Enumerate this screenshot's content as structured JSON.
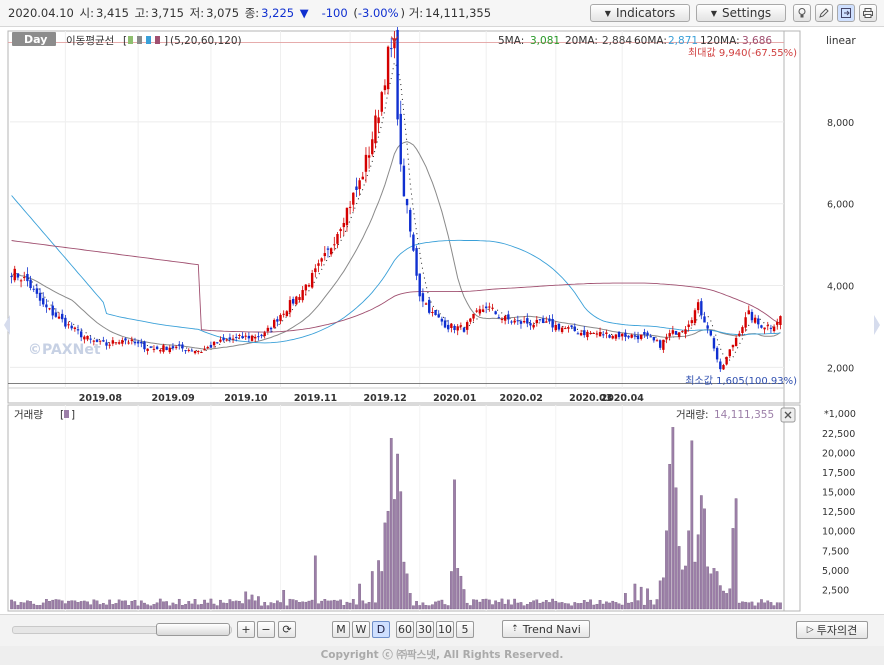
{
  "quote": {
    "date": "2020.04.10",
    "open_label": "시:",
    "open": "3,415",
    "high_label": "고:",
    "high": "3,715",
    "low_label": "저:",
    "low": "3,075",
    "close_label": "종:",
    "close": "3,225",
    "direction_symbol": "▼",
    "change": "-100",
    "change_pct": "-3.00%",
    "volume_label": "거:",
    "volume": "14,111,355"
  },
  "toolbar": {
    "indicators_label": "Indicators",
    "settings_label": "Settings"
  },
  "price_panel": {
    "period_label": "Day",
    "ma_label": "이동평균선",
    "ma_periods": "(5,20,60,120)",
    "ma5_label": "5MA:",
    "ma5": "3,081",
    "ma20_label": "20MA:",
    "ma20": "2,884",
    "ma60_label": "60MA:",
    "ma60": "2,871",
    "ma120_label": "120MA:",
    "ma120": "3,686",
    "scale_mode": "linear",
    "max_label": "최대값 9,940(-67.55%)",
    "min_label": "최소값 1,605(100.93%)",
    "watermark": "©PAXNet"
  },
  "volume_panel": {
    "title": "거래량",
    "current_label": "거래량:",
    "current": "14,111,355",
    "unit": "*1,000"
  },
  "colors": {
    "up": "#d40000",
    "down": "#1030d0",
    "ma5": "#222222",
    "ma20": "#8a8a8a",
    "ma60": "#3aa0d8",
    "ma120": "#a05070",
    "volume": "#9c7fa8"
  },
  "chart_data": [
    {
      "type": "candlestick",
      "series": [
        {
          "name": "5MA",
          "last": 3081
        },
        {
          "name": "20MA",
          "last": 2884
        },
        {
          "name": "60MA",
          "last": 2871
        },
        {
          "name": "120MA",
          "last": 3686
        }
      ],
      "x_ticks": [
        "2019.08",
        "2019.09",
        "2019.10",
        "2019.11",
        "2019.12",
        "2020.01",
        "2020.02",
        "2020.03",
        "2020.04"
      ],
      "y_ticks": [
        2000,
        4000,
        6000,
        8000
      ],
      "ylim": [
        1300,
        10100
      ],
      "max": 9940,
      "min": 1605,
      "anchors": [
        [
          0,
          4350
        ],
        [
          5,
          4100
        ],
        [
          10,
          3500
        ],
        [
          15,
          3200
        ],
        [
          20,
          2900
        ],
        [
          25,
          2650
        ],
        [
          30,
          2550
        ],
        [
          35,
          2700
        ],
        [
          40,
          2550
        ],
        [
          45,
          2450
        ],
        [
          50,
          2500
        ],
        [
          55,
          2450
        ],
        [
          60,
          2400
        ],
        [
          65,
          2600
        ],
        [
          70,
          2700
        ],
        [
          75,
          2750
        ],
        [
          80,
          2800
        ],
        [
          85,
          3300
        ],
        [
          90,
          3700
        ],
        [
          95,
          4200
        ],
        [
          100,
          4800
        ],
        [
          105,
          5700
        ],
        [
          110,
          6500
        ],
        [
          113,
          7300
        ],
        [
          116,
          8300
        ],
        [
          119,
          9600
        ],
        [
          121,
          9800
        ],
        [
          123,
          6800
        ],
        [
          125,
          5800
        ],
        [
          127,
          4800
        ],
        [
          129,
          3800
        ],
        [
          133,
          3300
        ],
        [
          138,
          3000
        ],
        [
          143,
          2950
        ],
        [
          147,
          3300
        ],
        [
          150,
          3500
        ],
        [
          155,
          3200
        ],
        [
          160,
          3100
        ],
        [
          170,
          3050
        ],
        [
          180,
          2850
        ],
        [
          190,
          2800
        ],
        [
          200,
          2750
        ],
        [
          205,
          2550
        ],
        [
          208,
          2800
        ],
        [
          213,
          3000
        ],
        [
          217,
          3500
        ],
        [
          220,
          3000
        ],
        [
          222,
          2500
        ],
        [
          224,
          1900
        ],
        [
          227,
          2400
        ],
        [
          230,
          2900
        ],
        [
          233,
          3300
        ],
        [
          236,
          3050
        ],
        [
          240,
          3000
        ],
        [
          243,
          3225
        ]
      ]
    },
    {
      "type": "bar",
      "name": "거래량",
      "y_ticks": [
        2500,
        5000,
        7500,
        10000,
        12500,
        15000,
        17500,
        20000,
        22500
      ],
      "ylim": [
        0,
        23500
      ],
      "unit": "*1,000",
      "spikes": [
        [
          74,
          2200
        ],
        [
          76,
          1800
        ],
        [
          78,
          1600
        ],
        [
          86,
          2400
        ],
        [
          96,
          6800
        ],
        [
          110,
          3200
        ],
        [
          114,
          4800
        ],
        [
          116,
          6200
        ],
        [
          117,
          4800
        ],
        [
          118,
          11000
        ],
        [
          119,
          12500
        ],
        [
          120,
          21800
        ],
        [
          121,
          14000
        ],
        [
          122,
          19800
        ],
        [
          123,
          15000
        ],
        [
          124,
          6000
        ],
        [
          125,
          4500
        ],
        [
          126,
          2000
        ],
        [
          139,
          4800
        ],
        [
          140,
          16500
        ],
        [
          141,
          5200
        ],
        [
          142,
          4200
        ],
        [
          143,
          2500
        ],
        [
          194,
          2000
        ],
        [
          197,
          3200
        ],
        [
          199,
          2800
        ],
        [
          201,
          2600
        ],
        [
          205,
          3600
        ],
        [
          206,
          4000
        ],
        [
          207,
          10000
        ],
        [
          208,
          18500
        ],
        [
          209,
          23200
        ],
        [
          210,
          15500
        ],
        [
          211,
          8000
        ],
        [
          212,
          5000
        ],
        [
          213,
          5500
        ],
        [
          214,
          10000
        ],
        [
          215,
          21500
        ],
        [
          216,
          6000
        ],
        [
          217,
          9500
        ],
        [
          218,
          14500
        ],
        [
          219,
          12800
        ],
        [
          220,
          5400
        ],
        [
          221,
          4500
        ],
        [
          222,
          5200
        ],
        [
          223,
          4800
        ],
        [
          224,
          3000
        ],
        [
          225,
          2300
        ],
        [
          226,
          2000
        ],
        [
          227,
          2600
        ],
        [
          228,
          10300
        ],
        [
          229,
          14111
        ]
      ]
    }
  ]
}
